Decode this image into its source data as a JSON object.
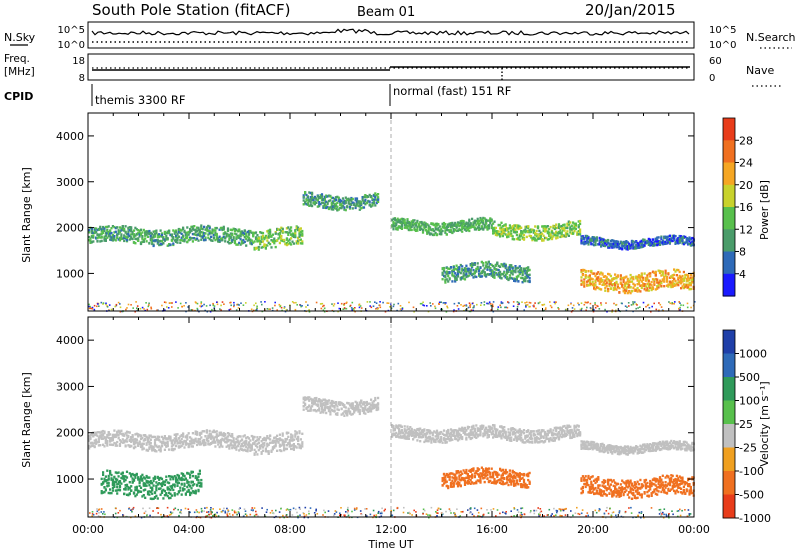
{
  "header": {
    "station": "South Pole Station (fitACF)",
    "beam": "Beam 01",
    "date": "20/Jan/2015"
  },
  "status_panels": {
    "nsky_label": "N.Sky",
    "nsky_ticks": [
      "10^5",
      "10^0"
    ],
    "nsearch_label": "N.Search",
    "nsearch_ticks": [
      "10^5",
      "10^0"
    ],
    "freq_label_1": "Freq.",
    "freq_label_2": "[MHz]",
    "freq_ticks": [
      "18",
      "8"
    ],
    "nave_label": "Nave",
    "nave_ticks": [
      "60",
      "0"
    ],
    "cpid_label": "CPID",
    "cpid_segments": [
      {
        "label": "themis 3300 RF",
        "start_hour": 0
      },
      {
        "label": "normal (fast) 151 RF",
        "start_hour": 12
      }
    ]
  },
  "colors": {
    "power_scale": [
      "#1a1aff",
      "#2e6ab8",
      "#4a9c6a",
      "#58c04c",
      "#c8d22c",
      "#f5a623",
      "#f07020",
      "#e83c1a"
    ],
    "velocity_scale": [
      "#1f3fa8",
      "#2e6ab8",
      "#2f9a5a",
      "#58c04c",
      "#c0c0c0",
      "#f0a020",
      "#f07020",
      "#e83c1a"
    ]
  },
  "chart_data": [
    {
      "type": "heatmap",
      "name": "power",
      "ylabel": "Slant Range [km]",
      "xlabel": "Time UT",
      "xlim": [
        0,
        24
      ],
      "ylim": [
        180,
        4500
      ],
      "x_ticks": [
        "00:00",
        "04:00",
        "08:00",
        "12:00",
        "16:00",
        "20:00",
        "00:00"
      ],
      "y_ticks": [
        1000,
        2000,
        3000,
        4000
      ],
      "colorbar": {
        "label": "Power [dB]",
        "ticks": [
          4,
          8,
          12,
          16,
          20,
          24,
          28
        ],
        "range": [
          0,
          32
        ]
      },
      "echo_bands": [
        {
          "t0": 0.0,
          "t1": 6.5,
          "r_mid": 1850,
          "r_half": 170,
          "value": 11
        },
        {
          "t0": 6.5,
          "t1": 8.5,
          "r_mid": 1800,
          "r_half": 200,
          "value": 14
        },
        {
          "t0": 8.5,
          "t1": 11.5,
          "r_mid": 2600,
          "r_half": 150,
          "value": 10
        },
        {
          "t0": 12.0,
          "t1": 16.0,
          "r_mid": 2050,
          "r_half": 130,
          "value": 12
        },
        {
          "t0": 16.0,
          "t1": 19.5,
          "r_mid": 1950,
          "r_half": 160,
          "value": 15
        },
        {
          "t0": 19.5,
          "t1": 24.0,
          "r_mid": 1700,
          "r_half": 90,
          "value": 6
        },
        {
          "t0": 14.0,
          "t1": 17.5,
          "r_mid": 1050,
          "r_half": 170,
          "value": 10
        },
        {
          "t0": 19.5,
          "t1": 24.0,
          "r_mid": 850,
          "r_half": 200,
          "value": 22
        }
      ]
    },
    {
      "type": "heatmap",
      "name": "velocity",
      "ylabel": "Slant Range [km]",
      "xlabel": "Time UT",
      "xlim": [
        0,
        24
      ],
      "ylim": [
        180,
        4500
      ],
      "x_ticks": [
        "00:00",
        "04:00",
        "08:00",
        "12:00",
        "16:00",
        "20:00",
        "00:00"
      ],
      "y_ticks": [
        1000,
        2000,
        3000,
        4000
      ],
      "colorbar": {
        "label": "Velocity [m s⁻¹]",
        "ticks": [
          1000,
          500,
          100,
          25,
          -25,
          -100,
          -500,
          -1000
        ]
      },
      "echo_bands": [
        {
          "t0": 0.0,
          "t1": 6.5,
          "r_mid": 1850,
          "r_half": 170,
          "value": 0
        },
        {
          "t0": 6.5,
          "t1": 8.5,
          "r_mid": 1800,
          "r_half": 200,
          "value": 0
        },
        {
          "t0": 8.5,
          "t1": 11.5,
          "r_mid": 2600,
          "r_half": 150,
          "value": 0
        },
        {
          "t0": 12.0,
          "t1": 19.5,
          "r_mid": 2000,
          "r_half": 140,
          "value": 0
        },
        {
          "t0": 19.5,
          "t1": 24.0,
          "r_mid": 1700,
          "r_half": 90,
          "value": 0
        },
        {
          "t0": 14.0,
          "t1": 17.5,
          "r_mid": 1050,
          "r_half": 170,
          "value": -300
        },
        {
          "t0": 19.5,
          "t1": 24.0,
          "r_mid": 850,
          "r_half": 200,
          "value": -300
        },
        {
          "t0": 0.5,
          "t1": 4.5,
          "r_mid": 900,
          "r_half": 250,
          "value": 150
        }
      ]
    }
  ]
}
